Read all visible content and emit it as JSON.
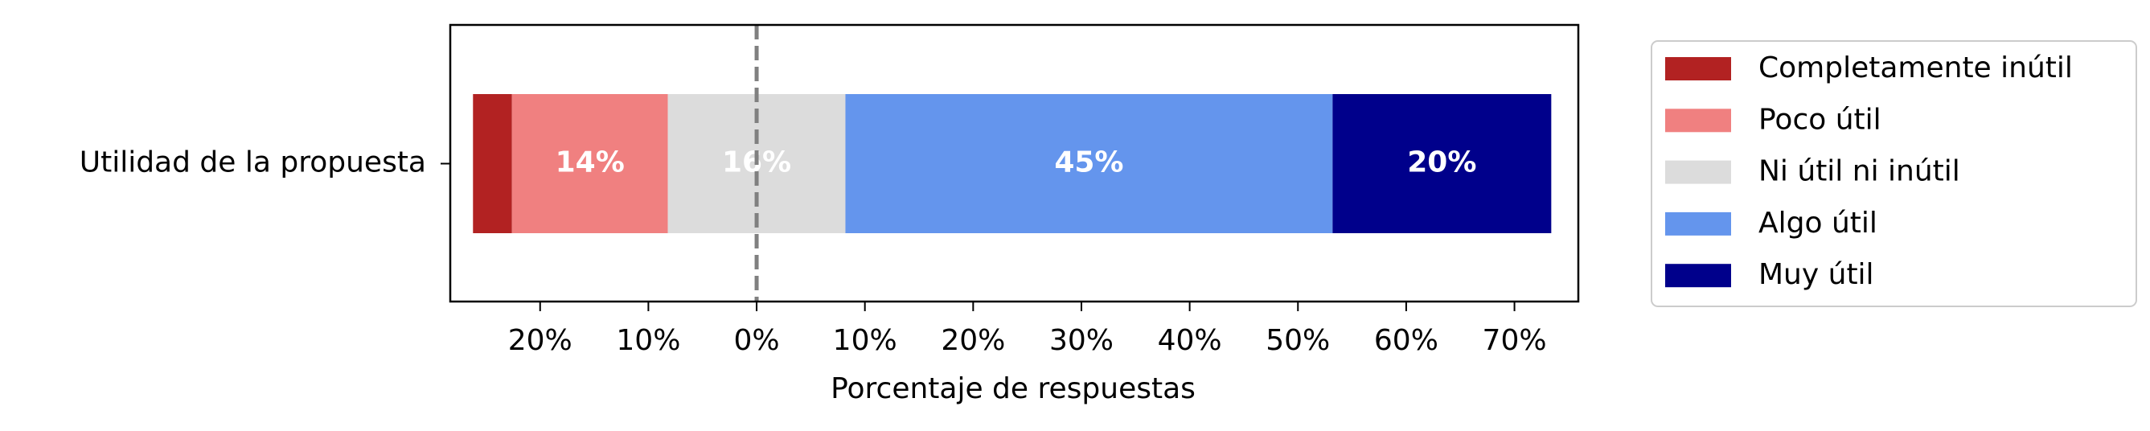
{
  "chart_data": {
    "type": "diverging_bar",
    "categories": [
      "Utilidad de la propuesta"
    ],
    "series": [
      {
        "name": "Completamente inútil",
        "color": "#b22222",
        "values": [
          3.6
        ],
        "value_labels": [
          null
        ]
      },
      {
        "name": "Poco útil",
        "color": "#f08080",
        "values": [
          14.4
        ],
        "value_labels": [
          "14%"
        ]
      },
      {
        "name": "Ni útil ni inútil",
        "color": "#dcdcdc",
        "values": [
          16.4
        ],
        "value_labels": [
          "16%"
        ]
      },
      {
        "name": "Algo útil",
        "color": "#6495ed",
        "values": [
          45.0
        ],
        "value_labels": [
          "45%"
        ]
      },
      {
        "name": "Muy útil",
        "color": "#00008b",
        "values": [
          20.2
        ],
        "value_labels": [
          "20%"
        ]
      }
    ],
    "xlabel": "Porcentaje de respuestas",
    "xlim": [
      -28.3,
      75.9
    ],
    "xticks": [
      {
        "value": -20,
        "label": "20%"
      },
      {
        "value": -10,
        "label": "10%"
      },
      {
        "value": 0,
        "label": "0%"
      },
      {
        "value": 10,
        "label": "10%"
      },
      {
        "value": 20,
        "label": "20%"
      },
      {
        "value": 30,
        "label": "30%"
      },
      {
        "value": 40,
        "label": "40%"
      },
      {
        "value": 50,
        "label": "50%"
      },
      {
        "value": 60,
        "label": "60%"
      },
      {
        "value": 70,
        "label": "70%"
      }
    ],
    "legend": "outside-right"
  }
}
